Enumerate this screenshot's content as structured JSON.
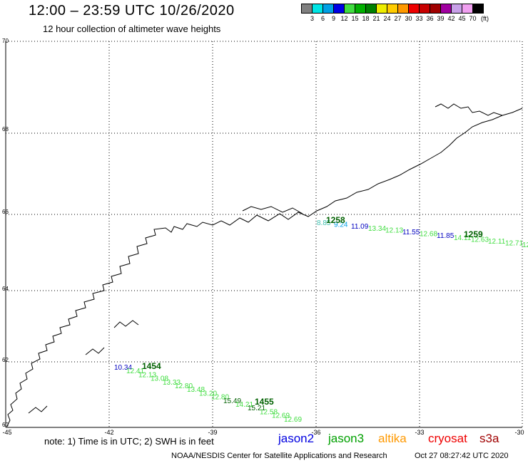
{
  "header": {
    "title": "12:00 – 23:59 UTC 10/26/2020",
    "subtitle": "12 hour collection of altimeter wave heights"
  },
  "colorbar": {
    "colors": [
      "#808080",
      "#00e5e5",
      "#00a0e5",
      "#0000e5",
      "#40dd40",
      "#00b000",
      "#008000",
      "#eded00",
      "#ffcc00",
      "#ff9900",
      "#ee0000",
      "#c80000",
      "#a00000",
      "#a000a0",
      "#c8a0e8",
      "#f0a0f0",
      "#000000"
    ],
    "labels": [
      "3",
      "6",
      "9",
      "12",
      "15",
      "18",
      "21",
      "24",
      "27",
      "30",
      "33",
      "36",
      "39",
      "42",
      "45",
      "70"
    ],
    "unit": "(ft)"
  },
  "axes": {
    "lat_labels": [
      "70",
      "68",
      "66",
      "64",
      "62",
      "60"
    ],
    "lon_labels": [
      "-45",
      "-42",
      "-39",
      "-36",
      "-33",
      "-30"
    ]
  },
  "tracks": {
    "t1": [
      {
        "text": "8.85",
        "color": "#40c0b0"
      },
      {
        "text": "9.24",
        "color": "#00a0e5"
      },
      {
        "text": "11.09",
        "color": "#0000c0"
      },
      {
        "text": "13.34",
        "color": "#40dd40"
      },
      {
        "text": "12.13",
        "color": "#40dd40"
      },
      {
        "text": "11.55",
        "color": "#0000c0"
      },
      {
        "text": "12.68",
        "color": "#40dd40"
      },
      {
        "text": "11.85",
        "color": "#0000c0"
      },
      {
        "text": "14.11",
        "color": "#40dd40"
      },
      {
        "text": "12.63",
        "color": "#40dd40"
      },
      {
        "text": "12.11",
        "color": "#40dd40"
      },
      {
        "text": "12.71",
        "color": "#40dd40"
      },
      {
        "text": "12",
        "color": "#40dd40"
      }
    ],
    "t2": [
      {
        "text": "10.34",
        "color": "#0000c0"
      },
      {
        "text": "12.41",
        "color": "#40dd40"
      },
      {
        "text": "12.13",
        "color": "#40dd40"
      },
      {
        "text": "13.08",
        "color": "#40dd40"
      },
      {
        "text": "13.33",
        "color": "#40dd40"
      },
      {
        "text": "12.80",
        "color": "#40dd40"
      },
      {
        "text": "13.48",
        "color": "#40dd40"
      },
      {
        "text": "13.20",
        "color": "#40dd40"
      },
      {
        "text": "12.80",
        "color": "#40dd40"
      },
      {
        "text": "15.49",
        "color": "#006000"
      },
      {
        "text": "14.21",
        "color": "#40dd40"
      },
      {
        "text": "15.21",
        "color": "#006000"
      },
      {
        "text": "12.58",
        "color": "#40dd40"
      },
      {
        "text": "12.69",
        "color": "#40dd40"
      },
      {
        "text": "12.69",
        "color": "#40dd40"
      }
    ],
    "times": [
      "1258",
      "1259",
      "1454",
      "1455"
    ]
  },
  "footer": {
    "note": "note: 1) Time is in UTC; 2) SWH is in feet",
    "satellites": [
      {
        "name": "jason2",
        "color": "#0000e0"
      },
      {
        "name": "jason3",
        "color": "#00a000"
      },
      {
        "name": "altika",
        "color": "#ff9900"
      },
      {
        "name": "cryosat",
        "color": "#ee0000"
      },
      {
        "name": "s3a",
        "color": "#a00000"
      }
    ],
    "credit": "NOAA/NESDIS Center for Satellite Applications and Research",
    "timestamp": "Oct 27 08:27:42 UTC 2020"
  }
}
